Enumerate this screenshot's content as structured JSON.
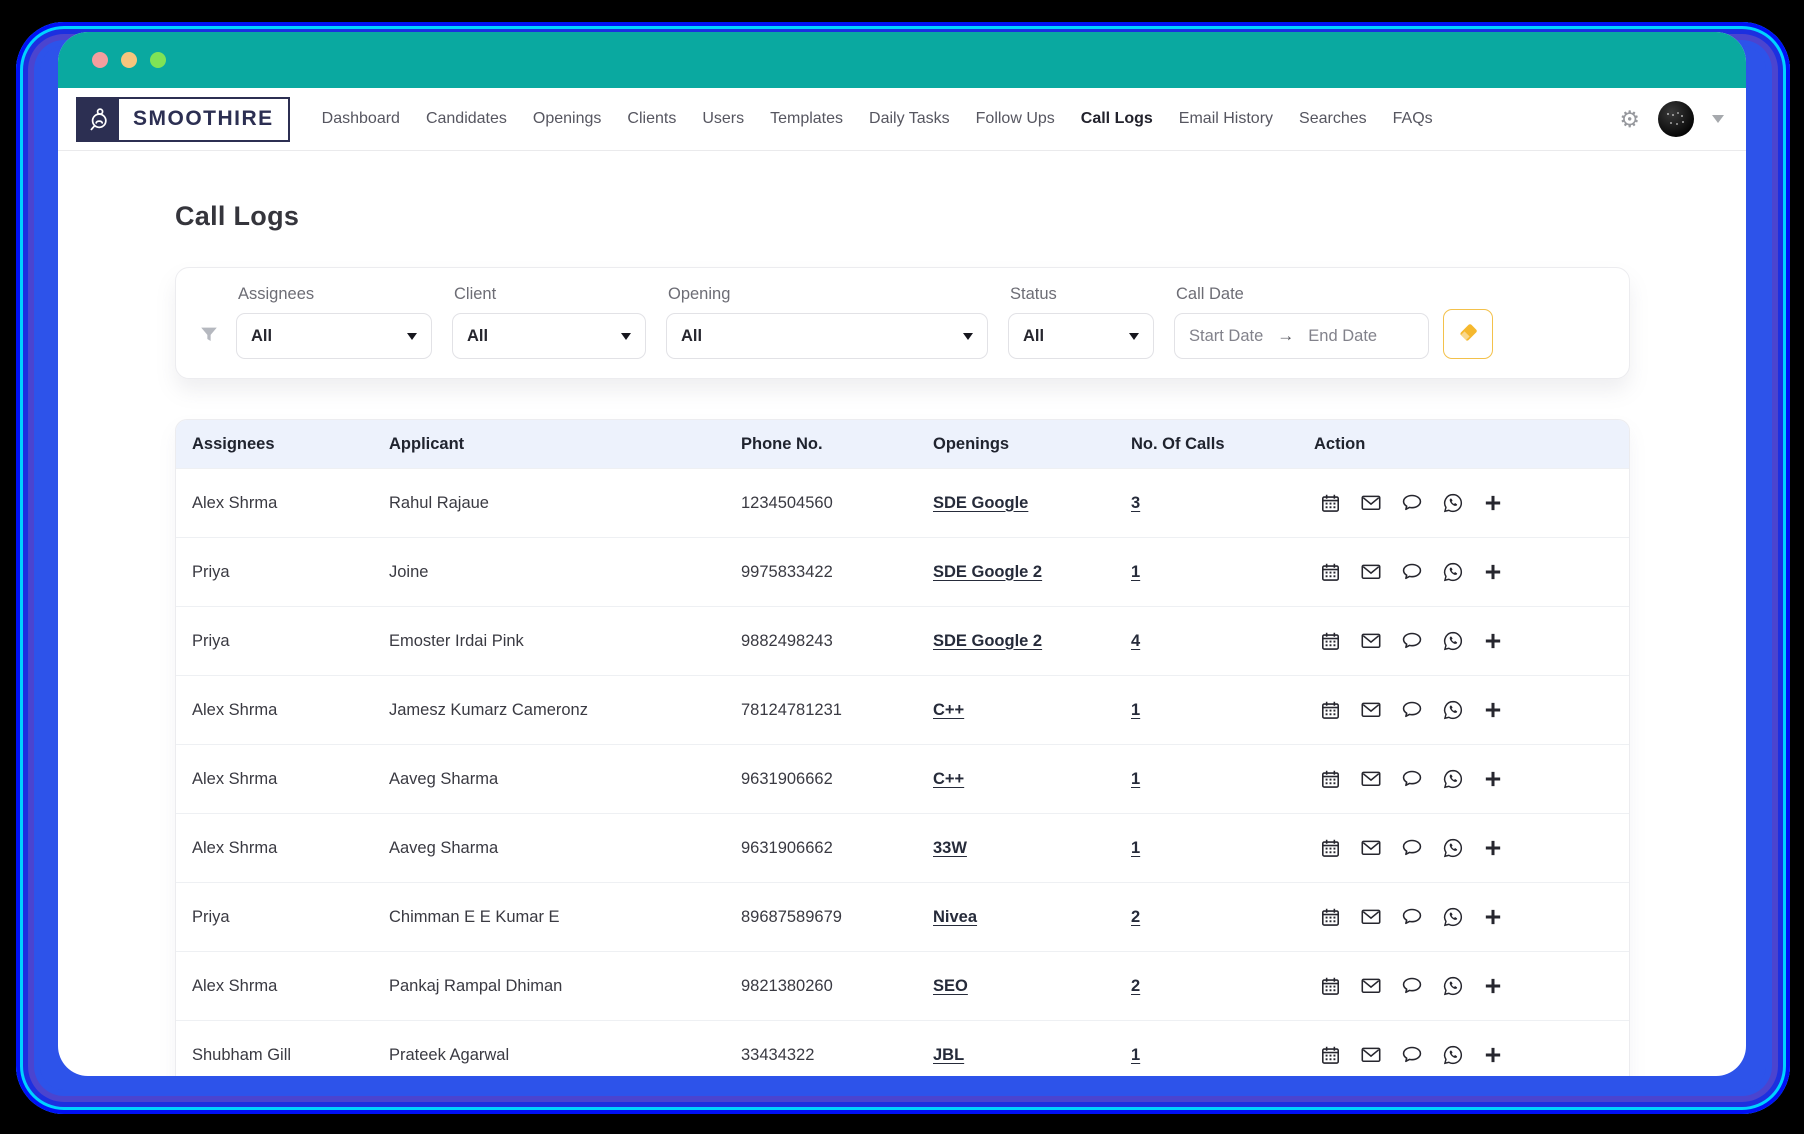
{
  "window": {
    "traffic_lights": [
      {
        "name": "close",
        "color": "#f59e9e"
      },
      {
        "name": "minimize",
        "color": "#f8c57d"
      },
      {
        "name": "maximize",
        "color": "#7fe356"
      }
    ]
  },
  "brand": {
    "name": "SMOOTHIRE",
    "logo_icon": "person-magnifier-icon"
  },
  "nav": {
    "items": [
      {
        "label": "Dashboard",
        "active": false
      },
      {
        "label": "Candidates",
        "active": false
      },
      {
        "label": "Openings",
        "active": false
      },
      {
        "label": "Clients",
        "active": false
      },
      {
        "label": "Users",
        "active": false
      },
      {
        "label": "Templates",
        "active": false
      },
      {
        "label": "Daily Tasks",
        "active": false
      },
      {
        "label": "Follow Ups",
        "active": false
      },
      {
        "label": "Call Logs",
        "active": true
      },
      {
        "label": "Email History",
        "active": false
      },
      {
        "label": "Searches",
        "active": false
      },
      {
        "label": "FAQs",
        "active": false
      }
    ]
  },
  "header_actions": {
    "gear_icon": "⚙",
    "avatar": "user-avatar"
  },
  "page": {
    "title": "Call Logs"
  },
  "filters": {
    "fields": [
      {
        "label": "Assignees",
        "value": "All"
      },
      {
        "label": "Client",
        "value": "All"
      },
      {
        "label": "Opening",
        "value": "All"
      },
      {
        "label": "Status",
        "value": "All"
      }
    ],
    "call_date": {
      "label": "Call Date",
      "start_placeholder": "Start Date",
      "arrow": "→",
      "end_placeholder": "End Date"
    },
    "clear_button_icon": "eraser-icon"
  },
  "table": {
    "columns": [
      "Assignees",
      "Applicant",
      "Phone No.",
      "Openings",
      "No. Of Calls",
      "Action"
    ],
    "rows": [
      {
        "assignee": "Alex Shrma",
        "applicant": "Rahul Rajaue",
        "phone": "1234504560",
        "opening": "SDE Google",
        "calls": "3"
      },
      {
        "assignee": "Priya",
        "applicant": "Joine",
        "phone": "9975833422",
        "opening": "SDE Google 2",
        "calls": "1"
      },
      {
        "assignee": "Priya",
        "applicant": "Emoster Irdai Pink",
        "phone": "9882498243",
        "opening": "SDE Google 2",
        "calls": "4"
      },
      {
        "assignee": "Alex Shrma",
        "applicant": "Jamesz Kumarz Cameronz",
        "phone": "78124781231",
        "opening": "C++",
        "calls": "1"
      },
      {
        "assignee": "Alex Shrma",
        "applicant": "Aaveg Sharma",
        "phone": "9631906662",
        "opening": "C++",
        "calls": "1"
      },
      {
        "assignee": "Alex Shrma",
        "applicant": "Aaveg Sharma",
        "phone": "9631906662",
        "opening": "33W",
        "calls": "1"
      },
      {
        "assignee": "Priya",
        "applicant": "Chimman E E Kumar E",
        "phone": "89687589679",
        "opening": "Nivea",
        "calls": "2"
      },
      {
        "assignee": "Alex Shrma",
        "applicant": "Pankaj Rampal Dhiman",
        "phone": "9821380260",
        "opening": "SEO",
        "calls": "2"
      },
      {
        "assignee": "Shubham Gill",
        "applicant": "Prateek Agarwal",
        "phone": "33434322",
        "opening": "JBL",
        "calls": "1"
      }
    ],
    "action_icons": [
      "calendar-icon",
      "email-icon",
      "comment-icon",
      "whatsapp-icon",
      "add-call-icon"
    ]
  },
  "colors": {
    "titlebar_teal": "#0aa9a0",
    "frame_blue": "#2d53ea",
    "accent_yellow": "#f5b82e",
    "table_header_bg": "#edf2fc",
    "link_color": "#262b3a"
  }
}
